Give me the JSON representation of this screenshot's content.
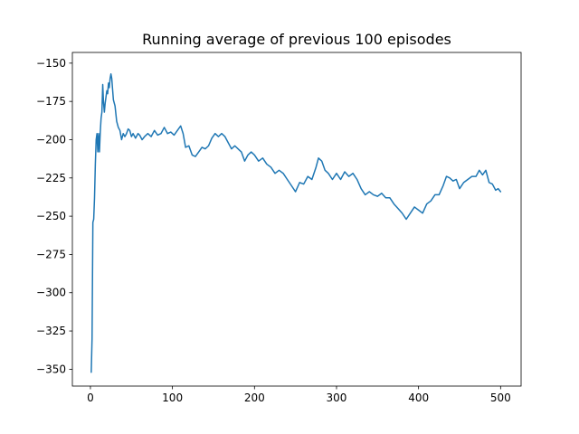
{
  "chart_data": {
    "type": "line",
    "title": "Running average of previous 100 episodes",
    "xlabel": "",
    "ylabel": "",
    "xlim": [
      -22,
      525
    ],
    "ylim": [
      -361,
      -143
    ],
    "xticks": [
      0,
      100,
      200,
      300,
      400,
      500
    ],
    "yticks": [
      -150,
      -175,
      -200,
      -225,
      -250,
      -275,
      -300,
      -325,
      -350
    ],
    "grid": false,
    "legend": "none",
    "series": [
      {
        "color": "#1f77b4",
        "points": [
          [
            1,
            -352
          ],
          [
            2,
            -330
          ],
          [
            3,
            -254
          ],
          [
            4,
            -252
          ],
          [
            5,
            -238
          ],
          [
            6,
            -216
          ],
          [
            7,
            -200
          ],
          [
            8,
            -196
          ],
          [
            9,
            -208
          ],
          [
            10,
            -196
          ],
          [
            11,
            -208
          ],
          [
            12,
            -195
          ],
          [
            13,
            -186
          ],
          [
            14,
            -182
          ],
          [
            15,
            -164
          ],
          [
            16,
            -176
          ],
          [
            17,
            -182
          ],
          [
            18,
            -176
          ],
          [
            19,
            -172
          ],
          [
            20,
            -168
          ],
          [
            21,
            -170
          ],
          [
            22,
            -163
          ],
          [
            23,
            -166
          ],
          [
            24,
            -160
          ],
          [
            25,
            -157
          ],
          [
            26,
            -160
          ],
          [
            28,
            -174
          ],
          [
            30,
            -178
          ],
          [
            32,
            -188
          ],
          [
            34,
            -192
          ],
          [
            36,
            -194
          ],
          [
            38,
            -200
          ],
          [
            40,
            -196
          ],
          [
            42,
            -198
          ],
          [
            44,
            -196
          ],
          [
            46,
            -193
          ],
          [
            48,
            -194
          ],
          [
            50,
            -198
          ],
          [
            52,
            -196
          ],
          [
            55,
            -199
          ],
          [
            58,
            -196
          ],
          [
            60,
            -197
          ],
          [
            63,
            -200
          ],
          [
            66,
            -198
          ],
          [
            70,
            -196
          ],
          [
            74,
            -198
          ],
          [
            78,
            -194
          ],
          [
            82,
            -197
          ],
          [
            86,
            -196
          ],
          [
            90,
            -192
          ],
          [
            94,
            -196
          ],
          [
            98,
            -195
          ],
          [
            102,
            -197
          ],
          [
            106,
            -194
          ],
          [
            110,
            -191
          ],
          [
            113,
            -196
          ],
          [
            116,
            -205
          ],
          [
            120,
            -204
          ],
          [
            124,
            -210
          ],
          [
            128,
            -211
          ],
          [
            132,
            -208
          ],
          [
            136,
            -205
          ],
          [
            140,
            -206
          ],
          [
            144,
            -204
          ],
          [
            148,
            -199
          ],
          [
            152,
            -196
          ],
          [
            156,
            -198
          ],
          [
            160,
            -196
          ],
          [
            164,
            -198
          ],
          [
            168,
            -202
          ],
          [
            172,
            -206
          ],
          [
            176,
            -204
          ],
          [
            180,
            -206
          ],
          [
            184,
            -208
          ],
          [
            188,
            -214
          ],
          [
            192,
            -210
          ],
          [
            196,
            -208
          ],
          [
            200,
            -210
          ],
          [
            205,
            -214
          ],
          [
            210,
            -212
          ],
          [
            215,
            -216
          ],
          [
            220,
            -218
          ],
          [
            225,
            -222
          ],
          [
            230,
            -220
          ],
          [
            235,
            -222
          ],
          [
            240,
            -226
          ],
          [
            245,
            -230
          ],
          [
            250,
            -234
          ],
          [
            255,
            -228
          ],
          [
            260,
            -229
          ],
          [
            265,
            -224
          ],
          [
            270,
            -226
          ],
          [
            275,
            -218
          ],
          [
            278,
            -212
          ],
          [
            282,
            -214
          ],
          [
            286,
            -220
          ],
          [
            290,
            -222
          ],
          [
            295,
            -226
          ],
          [
            300,
            -222
          ],
          [
            305,
            -226
          ],
          [
            310,
            -221
          ],
          [
            315,
            -224
          ],
          [
            320,
            -222
          ],
          [
            325,
            -226
          ],
          [
            330,
            -232
          ],
          [
            335,
            -236
          ],
          [
            340,
            -234
          ],
          [
            345,
            -236
          ],
          [
            350,
            -237
          ],
          [
            355,
            -235
          ],
          [
            360,
            -238
          ],
          [
            365,
            -238
          ],
          [
            370,
            -242
          ],
          [
            375,
            -245
          ],
          [
            380,
            -248
          ],
          [
            385,
            -252
          ],
          [
            390,
            -248
          ],
          [
            395,
            -244
          ],
          [
            400,
            -246
          ],
          [
            405,
            -248
          ],
          [
            410,
            -242
          ],
          [
            415,
            -240
          ],
          [
            420,
            -236
          ],
          [
            425,
            -236
          ],
          [
            430,
            -230
          ],
          [
            434,
            -224
          ],
          [
            438,
            -225
          ],
          [
            442,
            -227
          ],
          [
            446,
            -226
          ],
          [
            450,
            -232
          ],
          [
            455,
            -228
          ],
          [
            460,
            -226
          ],
          [
            465,
            -224
          ],
          [
            470,
            -224
          ],
          [
            474,
            -220
          ],
          [
            478,
            -223
          ],
          [
            482,
            -220
          ],
          [
            486,
            -228
          ],
          [
            490,
            -229
          ],
          [
            494,
            -233
          ],
          [
            497,
            -232
          ],
          [
            500,
            -234
          ]
        ]
      }
    ]
  }
}
